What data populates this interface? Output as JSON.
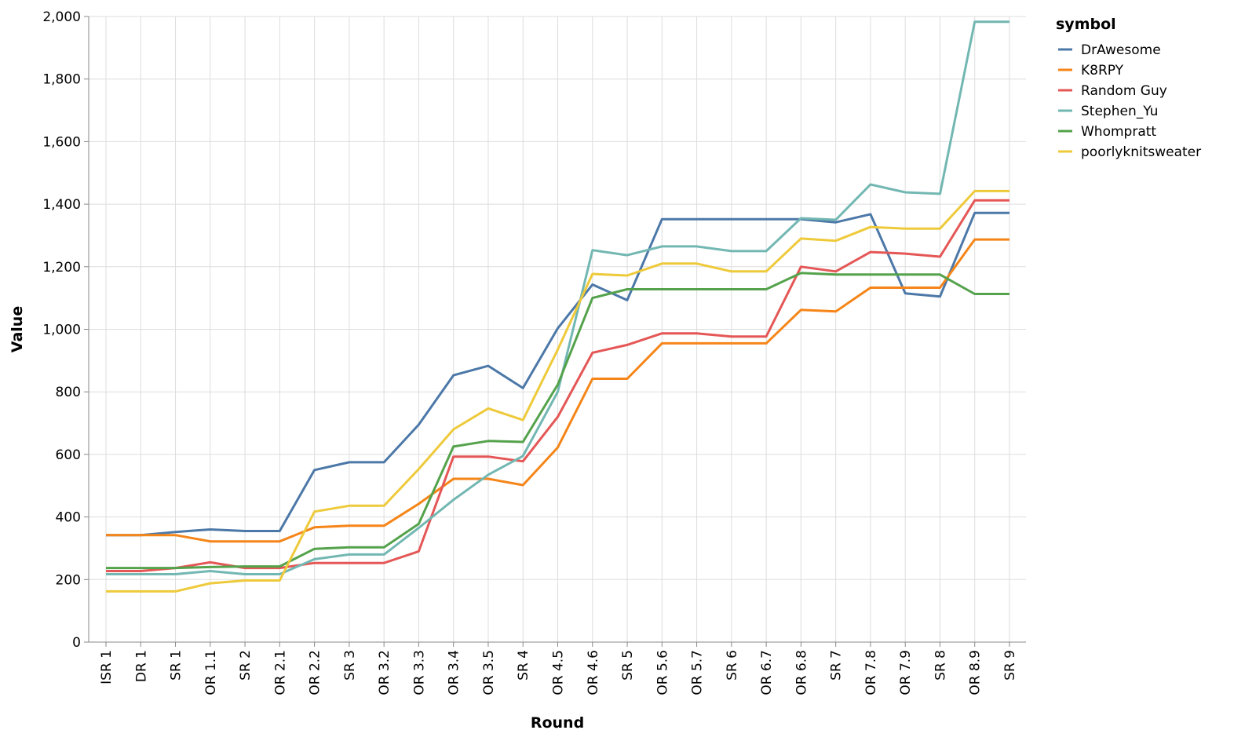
{
  "chart_data": {
    "type": "line",
    "xlabel": "Round",
    "ylabel": "Value",
    "ylim": [
      0,
      2000
    ],
    "yticks": [
      0,
      200,
      400,
      600,
      800,
      1000,
      1200,
      1400,
      1600,
      1800,
      2000
    ],
    "ytick_labels": [
      "0",
      "200",
      "400",
      "600",
      "800",
      "1,000",
      "1,200",
      "1,400",
      "1,600",
      "1,800",
      "2,000"
    ],
    "grid": true,
    "legend_title": "symbol",
    "legend_position": "top-right",
    "categories": [
      "ISR 1",
      "DR 1",
      "SR 1",
      "OR 1.1",
      "SR 2",
      "OR 2.1",
      "OR 2.2",
      "SR 3",
      "OR 3.2",
      "OR 3.3",
      "OR 3.4",
      "OR 3.5",
      "SR 4",
      "OR 4.5",
      "OR 4.6",
      "SR 5",
      "OR 5.6",
      "OR 5.7",
      "SR 6",
      "OR 6.7",
      "OR 6.8",
      "SR 7",
      "OR 7.8",
      "OR 7.9",
      "SR 8",
      "OR 8.9",
      "SR 9"
    ],
    "series": [
      {
        "name": "DrAwesome",
        "color": "#4c78a8",
        "values": [
          342,
          342,
          352,
          360,
          355,
          355,
          550,
          575,
          575,
          695,
          853,
          883,
          812,
          1003,
          1143,
          1093,
          1352,
          1352,
          1352,
          1352,
          1352,
          1342,
          1368,
          1115,
          1105,
          1372,
          1372
        ]
      },
      {
        "name": "K8RPY",
        "color": "#f58518",
        "values": [
          342,
          342,
          342,
          322,
          322,
          322,
          367,
          372,
          372,
          442,
          522,
          522,
          502,
          622,
          842,
          842,
          955,
          955,
          955,
          955,
          1062,
          1057,
          1133,
          1133,
          1133,
          1287,
          1287
        ]
      },
      {
        "name": "Random Guy",
        "color": "#e45756",
        "values": [
          227,
          227,
          237,
          255,
          237,
          237,
          253,
          253,
          253,
          290,
          593,
          593,
          578,
          720,
          925,
          950,
          987,
          987,
          977,
          977,
          1200,
          1185,
          1247,
          1242,
          1232,
          1412,
          1412
        ]
      },
      {
        "name": "Stephen_Yu",
        "color": "#72b7b2",
        "values": [
          217,
          217,
          217,
          227,
          217,
          217,
          265,
          280,
          280,
          365,
          455,
          535,
          595,
          800,
          1253,
          1237,
          1265,
          1265,
          1250,
          1250,
          1355,
          1350,
          1463,
          1438,
          1433,
          1983,
          1983
        ]
      },
      {
        "name": "Whompratt",
        "color": "#54a24b",
        "values": [
          237,
          237,
          237,
          240,
          242,
          242,
          298,
          303,
          303,
          378,
          625,
          643,
          640,
          823,
          1100,
          1128,
          1128,
          1128,
          1128,
          1128,
          1180,
          1175,
          1175,
          1175,
          1175,
          1113,
          1113
        ]
      },
      {
        "name": "poorlyknitsweater",
        "color": "#eeca3b",
        "values": [
          162,
          162,
          162,
          188,
          197,
          197,
          417,
          436,
          436,
          553,
          680,
          747,
          710,
          935,
          1177,
          1172,
          1210,
          1210,
          1185,
          1185,
          1290,
          1283,
          1327,
          1322,
          1322,
          1442,
          1442
        ]
      }
    ]
  }
}
